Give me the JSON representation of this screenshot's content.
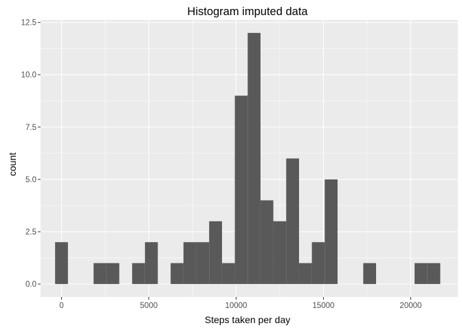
{
  "chart_data": {
    "type": "bar",
    "title": "Histogram imputed data",
    "xlabel": "Steps taken per day",
    "ylabel": "count",
    "xlim": [
      -1200,
      22700
    ],
    "ylim": [
      -0.62,
      12.62
    ],
    "x_ticks": [
      0,
      5000,
      10000,
      15000,
      20000
    ],
    "x_tick_labels": [
      "0",
      "5000",
      "10000",
      "15000",
      "20000"
    ],
    "y_ticks": [
      0,
      2.5,
      5,
      7.5,
      10,
      12.5
    ],
    "y_tick_labels": [
      "0.0",
      "2.5",
      "5.0",
      "7.5",
      "10.0",
      "12.5"
    ],
    "grid": true,
    "bar_color": "#595959",
    "panel_color": "#EBEBEB",
    "bins": [
      {
        "x0": -368,
        "x1": 368,
        "count": 2
      },
      {
        "x0": 1837,
        "x1": 2573,
        "count": 1
      },
      {
        "x0": 2573,
        "x1": 3308,
        "count": 1
      },
      {
        "x0": 4044,
        "x1": 4779,
        "count": 1
      },
      {
        "x0": 4779,
        "x1": 5514,
        "count": 2
      },
      {
        "x0": 6250,
        "x1": 6985,
        "count": 1
      },
      {
        "x0": 6985,
        "x1": 7721,
        "count": 2
      },
      {
        "x0": 7721,
        "x1": 8456,
        "count": 2
      },
      {
        "x0": 8456,
        "x1": 9191,
        "count": 3
      },
      {
        "x0": 9191,
        "x1": 9927,
        "count": 1
      },
      {
        "x0": 9927,
        "x1": 10662,
        "count": 9
      },
      {
        "x0": 10662,
        "x1": 11397,
        "count": 12
      },
      {
        "x0": 11397,
        "x1": 12132,
        "count": 4
      },
      {
        "x0": 12132,
        "x1": 12868,
        "count": 3
      },
      {
        "x0": 12868,
        "x1": 13603,
        "count": 6
      },
      {
        "x0": 13603,
        "x1": 14338,
        "count": 1
      },
      {
        "x0": 14338,
        "x1": 15074,
        "count": 2
      },
      {
        "x0": 15074,
        "x1": 15809,
        "count": 5
      },
      {
        "x0": 17280,
        "x1": 18015,
        "count": 1
      },
      {
        "x0": 20221,
        "x1": 20956,
        "count": 1
      },
      {
        "x0": 20956,
        "x1": 21691,
        "count": 1
      }
    ]
  }
}
